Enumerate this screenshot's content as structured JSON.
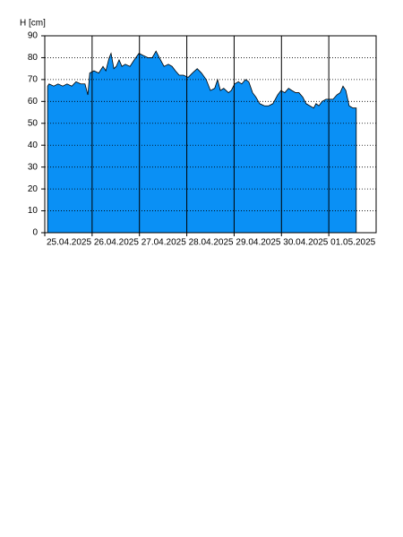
{
  "chart_data": {
    "type": "area",
    "y_label": "H [cm]",
    "x": [
      0.06,
      0.09,
      0.19,
      0.28,
      0.38,
      0.47,
      0.57,
      0.66,
      0.76,
      0.85,
      0.91,
      0.95,
      1.04,
      1.14,
      1.23,
      1.29,
      1.36,
      1.4,
      1.46,
      1.51,
      1.57,
      1.63,
      1.7,
      1.8,
      1.89,
      1.99,
      2.08,
      2.18,
      2.27,
      2.35,
      2.42,
      2.52,
      2.61,
      2.69,
      2.76,
      2.84,
      2.93,
      3.03,
      3.12,
      3.22,
      3.31,
      3.41,
      3.5,
      3.59,
      3.65,
      3.71,
      3.78,
      3.88,
      3.94,
      4.01,
      4.09,
      4.16,
      4.24,
      4.31,
      4.39,
      4.46,
      4.54,
      4.64,
      4.73,
      4.82,
      4.92,
      4.99,
      5.07,
      5.15,
      5.22,
      5.3,
      5.37,
      5.45,
      5.52,
      5.6,
      5.68,
      5.73,
      5.79,
      5.86,
      5.94,
      6.02,
      6.09,
      6.17,
      6.24,
      6.3,
      6.36,
      6.43,
      6.51,
      6.58
    ],
    "values": [
      67,
      68,
      67,
      68,
      67,
      68,
      67,
      69,
      68,
      68,
      63,
      73,
      74,
      73,
      76,
      74,
      80,
      82,
      75,
      76,
      79,
      76,
      77,
      76,
      79,
      82,
      81,
      80,
      80,
      83,
      80,
      76,
      77,
      76,
      74,
      72,
      72,
      71,
      73,
      75,
      73,
      70,
      65,
      66,
      70,
      65,
      66,
      64,
      65,
      68,
      69,
      68,
      70,
      69,
      64,
      62,
      59,
      58,
      58,
      59,
      63,
      65,
      64,
      66,
      65,
      64,
      64,
      62,
      59,
      58,
      57,
      59,
      58,
      60,
      61,
      61,
      61,
      63,
      64,
      67,
      65,
      58,
      57,
      57
    ],
    "color": "#0a90f5",
    "xlim": [
      0,
      7
    ],
    "xticks": [
      {
        "value": 0,
        "label": "25.04.2025"
      },
      {
        "value": 1,
        "label": "26.04.2025"
      },
      {
        "value": 2,
        "label": "27.04.2025"
      },
      {
        "value": 3,
        "label": "28.04.2025"
      },
      {
        "value": 4,
        "label": "29.04.2025"
      },
      {
        "value": 5,
        "label": "30.04.2025"
      },
      {
        "value": 6,
        "label": "01.05.2025"
      }
    ],
    "ylim": [
      0,
      90
    ],
    "yticks": [
      0,
      10,
      20,
      30,
      40,
      50,
      60,
      70,
      80,
      90
    ],
    "grid": true
  }
}
